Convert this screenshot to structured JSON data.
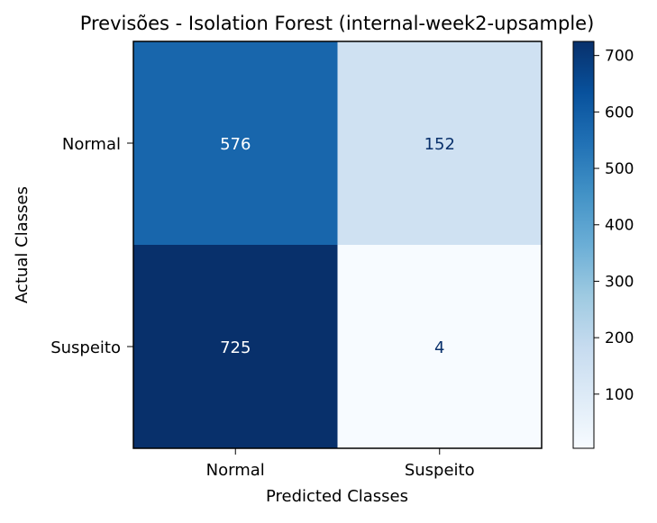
{
  "chart_data": {
    "type": "heatmap",
    "title": "Previsões - Isolation Forest (internal-week2-upsample)",
    "xlabel": "Predicted Classes",
    "ylabel": "Actual Classes",
    "x_categories": [
      "Normal",
      "Suspeito"
    ],
    "y_categories": [
      "Normal",
      "Suspeito"
    ],
    "values": [
      [
        576,
        152
      ],
      [
        725,
        4
      ]
    ],
    "colormap": "Blues",
    "colorbar": {
      "min": 4,
      "max": 725,
      "ticks": [
        100,
        200,
        300,
        400,
        500,
        600,
        700
      ]
    },
    "colors": {
      "low": "#f7fbff",
      "high": "#08306b",
      "text_on_dark": "#ffffff",
      "text_on_light": "#08306b"
    }
  }
}
